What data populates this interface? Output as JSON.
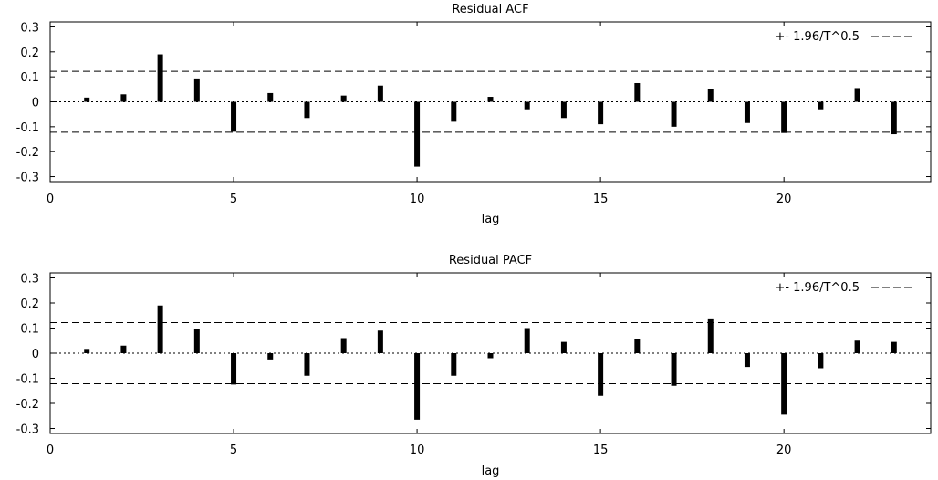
{
  "chart_data": [
    {
      "type": "bar",
      "title": "Residual ACF",
      "xlabel": "lag",
      "ylabel": "",
      "xlim": [
        0,
        24
      ],
      "ylim": [
        -0.32,
        0.32
      ],
      "xticks": [
        "0",
        "5",
        "10",
        "15",
        "20"
      ],
      "yticks": [
        "0.3",
        "0.2",
        "0.1",
        "0",
        "-0.1",
        "-0.2",
        "-0.3"
      ],
      "grid": false,
      "legend": {
        "label": "+- 1.96/T^0.5",
        "position": "top-right"
      },
      "band": 0.122,
      "lags": [
        1,
        2,
        3,
        4,
        5,
        6,
        7,
        8,
        9,
        10,
        11,
        12,
        13,
        14,
        15,
        16,
        17,
        18,
        19,
        20,
        21,
        22,
        23
      ],
      "values": [
        0.017,
        0.03,
        0.19,
        0.09,
        -0.12,
        0.035,
        -0.065,
        0.025,
        0.065,
        -0.26,
        -0.08,
        0.02,
        -0.03,
        -0.065,
        -0.09,
        0.075,
        -0.1,
        0.05,
        -0.085,
        -0.125,
        -0.03,
        0.055,
        -0.13
      ]
    },
    {
      "type": "bar",
      "title": "Residual PACF",
      "xlabel": "lag",
      "ylabel": "",
      "xlim": [
        0,
        24
      ],
      "ylim": [
        -0.32,
        0.32
      ],
      "xticks": [
        "0",
        "5",
        "10",
        "15",
        "20"
      ],
      "yticks": [
        "0.3",
        "0.2",
        "0.1",
        "0",
        "-0.1",
        "-0.2",
        "-0.3"
      ],
      "grid": false,
      "legend": {
        "label": "+- 1.96/T^0.5",
        "position": "top-right"
      },
      "band": 0.122,
      "lags": [
        1,
        2,
        3,
        4,
        5,
        6,
        7,
        8,
        9,
        10,
        11,
        12,
        13,
        14,
        15,
        16,
        17,
        18,
        19,
        20,
        21,
        22,
        23
      ],
      "values": [
        0.017,
        0.03,
        0.19,
        0.095,
        -0.125,
        -0.025,
        -0.09,
        0.06,
        0.09,
        -0.265,
        -0.09,
        -0.02,
        0.1,
        0.045,
        -0.17,
        0.055,
        -0.13,
        0.135,
        -0.055,
        -0.245,
        -0.06,
        0.05,
        0.045
      ]
    }
  ]
}
